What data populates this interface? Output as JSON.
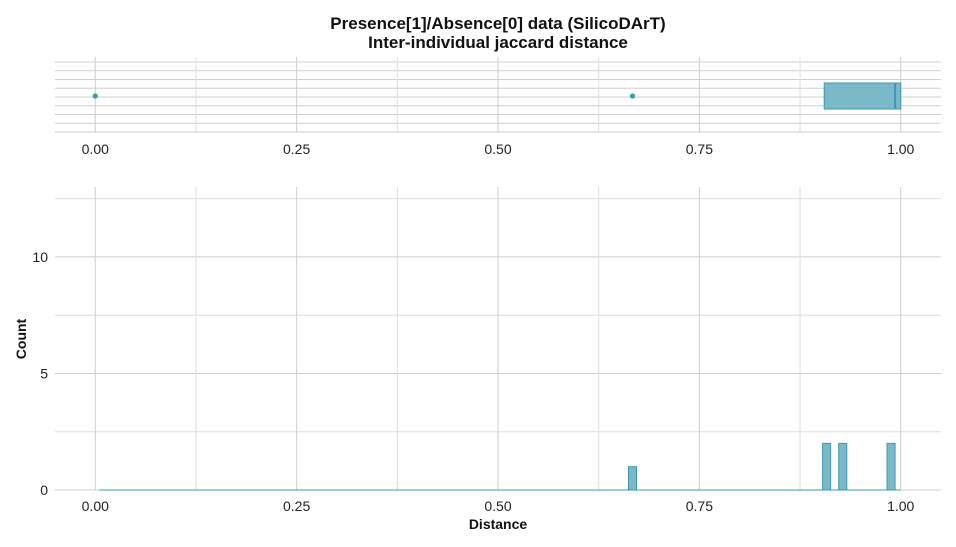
{
  "title_line1": "Presence[1]/Absence[0] data (SilicoDArT)",
  "title_line2": "Inter-individual jaccard distance",
  "colors": {
    "fill": "#7BB8C8",
    "stroke": "#3A9AB0",
    "grid": "#cfcfcf"
  },
  "chart_data": [
    {
      "type": "boxplot",
      "xlim": [
        -0.05,
        1.05
      ],
      "x_ticks": [
        "0.00",
        "0.25",
        "0.50",
        "0.75",
        "1.00"
      ],
      "x_tick_values": [
        0,
        0.25,
        0.5,
        0.75,
        1.0
      ],
      "box": {
        "q1": 0.905,
        "median": 0.993,
        "q3": 1.0,
        "whisker_low": 0.905,
        "whisker_high": 1.0
      },
      "outliers": [
        0.0,
        0.667
      ],
      "grid": true
    },
    {
      "type": "histogram",
      "xlabel": "Distance",
      "ylabel": "Count",
      "xlim": [
        -0.05,
        1.05
      ],
      "ylim": [
        0,
        13
      ],
      "x_ticks": [
        "0.00",
        "0.25",
        "0.50",
        "0.75",
        "1.00"
      ],
      "x_tick_values": [
        0,
        0.25,
        0.5,
        0.75,
        1.0
      ],
      "y_ticks": [
        "0",
        "5",
        "10"
      ],
      "y_tick_values": [
        0,
        5,
        10
      ],
      "bin_width": 0.01,
      "bins": [
        {
          "x": 0.667,
          "count": 1
        },
        {
          "x": 0.908,
          "count": 2
        },
        {
          "x": 0.928,
          "count": 2
        },
        {
          "x": 0.988,
          "count": 2
        }
      ],
      "baseline_from": 0.005,
      "grid": true
    }
  ]
}
